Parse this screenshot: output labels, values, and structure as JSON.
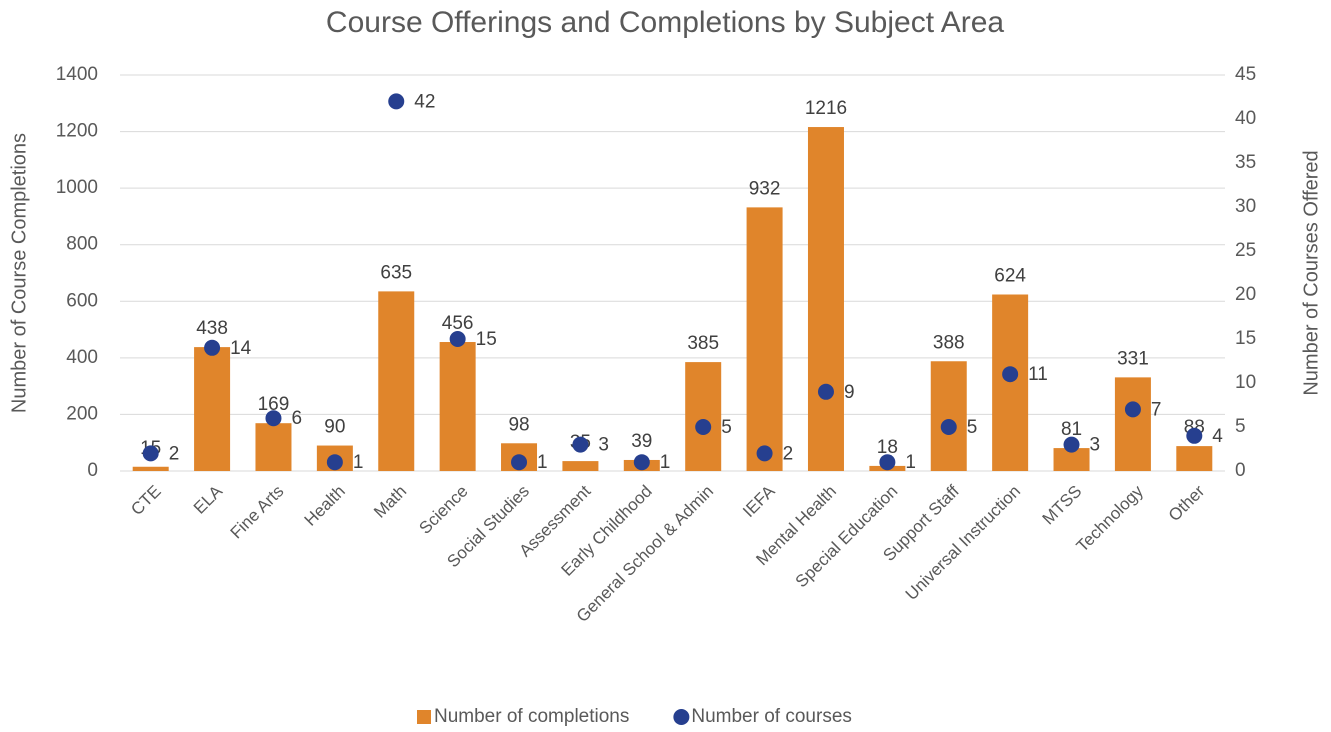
{
  "chart_data": {
    "type": "bar",
    "title": "Course Offerings and Completions by Subject Area",
    "y_label": "Number of Course Completions",
    "y2_label": "Number of Courses Offered",
    "categories": [
      "CTE",
      "ELA",
      "Fine Arts",
      "Health",
      "Math",
      "Science",
      "Social Studies",
      "Assessment",
      "Early Childhood",
      "General School & Admin",
      "IEFA",
      "Mental Health",
      "Special Education",
      "Support Staff",
      "Universal Instruction",
      "MTSS",
      "Technology",
      "Other"
    ],
    "series": [
      {
        "name": "Number of completions",
        "type": "bar",
        "color": "#e0852b",
        "values": [
          15,
          438,
          169,
          90,
          635,
          456,
          98,
          35,
          39,
          385,
          932,
          1216,
          18,
          388,
          624,
          81,
          331,
          88
        ]
      },
      {
        "name": "Number of courses",
        "type": "scatter",
        "axis": "y2",
        "color": "#263f8f",
        "values": [
          2,
          14,
          6,
          1,
          42,
          15,
          1,
          3,
          1,
          5,
          2,
          9,
          1,
          5,
          11,
          3,
          7,
          4
        ]
      }
    ],
    "ylim": [
      0,
      1400
    ],
    "yticks": [
      0,
      200,
      400,
      600,
      800,
      1000,
      1200,
      1400
    ],
    "y2lim": [
      0,
      45
    ],
    "y2ticks": [
      0,
      5,
      10,
      15,
      20,
      25,
      30,
      35,
      40,
      45
    ],
    "grid": true,
    "legend": "bottom"
  }
}
